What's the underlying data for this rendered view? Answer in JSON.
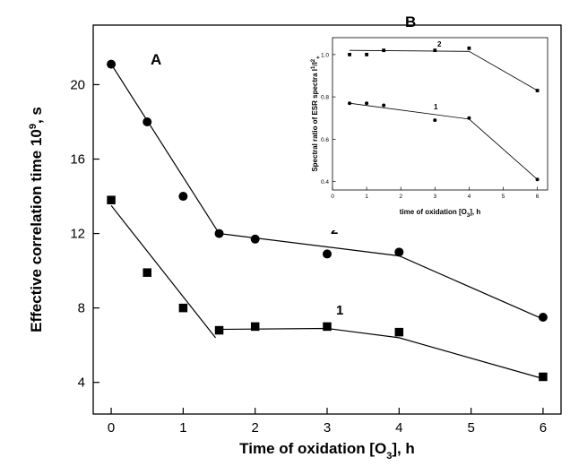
{
  "chart_data": [
    {
      "type": "scatter",
      "panel_label": "A",
      "xlabel": "Time of oxidation [O",
      "xlabel_sub": "3",
      "xlabel_tail": "], h",
      "ylabel": "Effective correlation time 10",
      "ylabel_sup": "9",
      "ylabel_tail": ", s",
      "x_ticks": [
        0,
        1,
        2,
        3,
        4,
        5,
        6
      ],
      "y_ticks": [
        4,
        8,
        12,
        16,
        20
      ],
      "xlim": [
        -0.25,
        6.25
      ],
      "ylim": [
        2.3,
        23.2
      ],
      "grid": false,
      "series": [
        {
          "name": "1",
          "marker": "square",
          "color": "#000000",
          "x": [
            0,
            0.5,
            1,
            1.5,
            2,
            3,
            4,
            6
          ],
          "y": [
            13.8,
            9.9,
            8.0,
            6.8,
            7.0,
            7.0,
            6.7,
            4.3
          ],
          "fit": [
            [
              0,
              13.5
            ],
            [
              1.45,
              6.4
            ]
          ],
          "fit2": [
            [
              1.5,
              6.85
            ],
            [
              3.0,
              6.9
            ],
            [
              4.0,
              6.4
            ],
            [
              6.0,
              4.2
            ]
          ]
        },
        {
          "name": "2",
          "marker": "circle",
          "color": "#000000",
          "x": [
            0,
            0.5,
            1,
            1.5,
            2,
            3,
            4,
            6
          ],
          "y": [
            21.1,
            18.0,
            14.0,
            12.0,
            11.7,
            10.9,
            11.0,
            7.5
          ],
          "fit": [
            [
              0,
              21.1
            ],
            [
              1.5,
              12.0
            ]
          ],
          "fit2": [
            [
              1.5,
              12.0
            ],
            [
              4.0,
              10.8
            ],
            [
              6.0,
              7.4
            ]
          ]
        }
      ]
    },
    {
      "type": "scatter",
      "panel_label": "B",
      "xlabel": "time of oxidation [O",
      "xlabel_sub": "3",
      "xlabel_tail": "], h",
      "ylabel": "Spectral ratio of ESR spectra I",
      "ylabel_sup": "1",
      "ylabel_mid": "/I",
      "ylabel_sup2": "2",
      "ylabel_sub2": "+",
      "x_ticks": [
        0,
        1,
        2,
        3,
        4,
        5,
        6
      ],
      "y_ticks": [
        0.4,
        0.6,
        0.8,
        1.0
      ],
      "y_tick_labels": [
        "0.4",
        "0.6",
        "0.8",
        "1.0"
      ],
      "xlim": [
        0,
        6.3
      ],
      "ylim": [
        0.36,
        1.08
      ],
      "grid": false,
      "series": [
        {
          "name": "1",
          "marker": "circle",
          "x": [
            0.5,
            1,
            1.5,
            3,
            4,
            6
          ],
          "y": [
            0.77,
            0.77,
            0.76,
            0.69,
            0.7,
            0.41
          ],
          "fit": [
            [
              0.5,
              0.77
            ],
            [
              4.0,
              0.695
            ],
            [
              6.0,
              0.41
            ]
          ]
        },
        {
          "name": "2",
          "marker": "square",
          "x": [
            0.5,
            1,
            1.5,
            3,
            4,
            6
          ],
          "y": [
            1.0,
            1.0,
            1.02,
            1.02,
            1.03,
            0.83
          ],
          "fit": [
            [
              0.5,
              1.02
            ],
            [
              4.0,
              1.015
            ],
            [
              6.0,
              0.83
            ]
          ]
        }
      ]
    }
  ]
}
